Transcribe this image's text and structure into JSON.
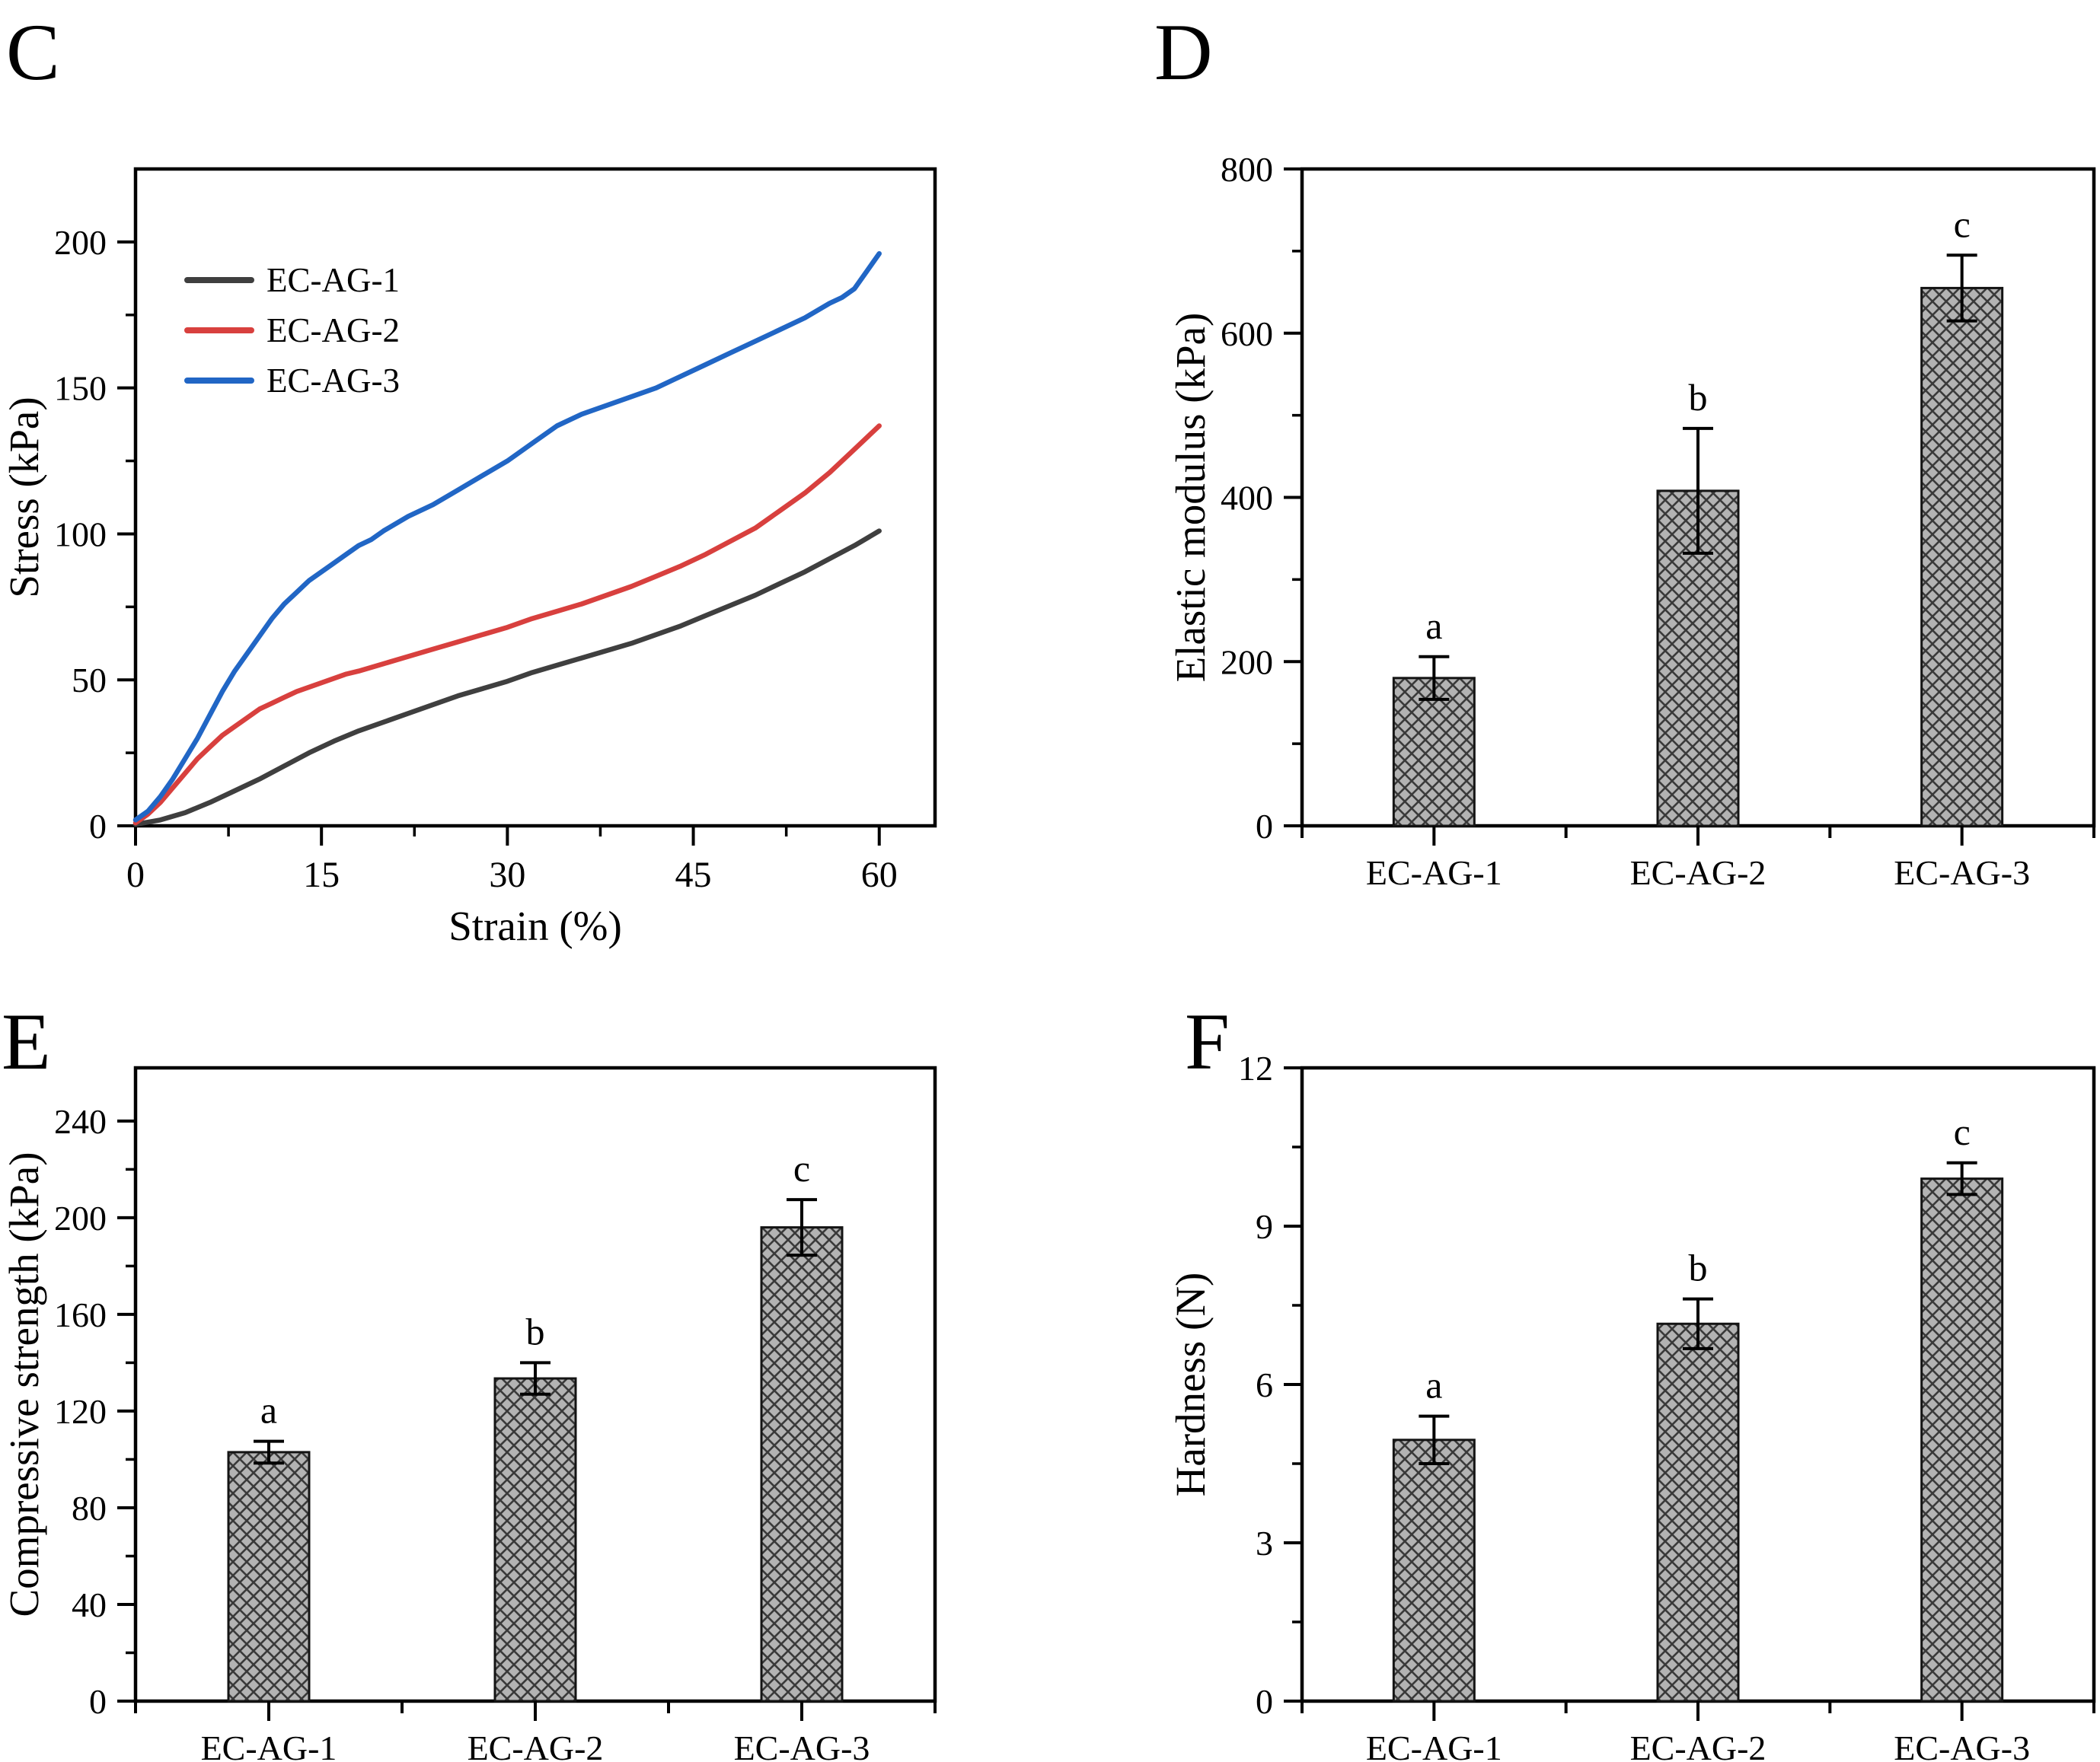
{
  "style": {
    "axis_color": "#000000",
    "text_color": "#000000",
    "bar_fill": "#b3b3b3",
    "bar_hatch": "#3a3a3a",
    "bar_edge": "#141414"
  },
  "chart_data": [
    {
      "type": "line",
      "panel": "C",
      "xlabel": "Strain (%)",
      "ylabel": "Stress (kPa)",
      "xlim": [
        0,
        64.5
      ],
      "ylim": [
        0,
        225
      ],
      "xticks": [
        0,
        15,
        30,
        45,
        60
      ],
      "xminor": [
        7.5,
        22.5,
        37.5,
        52.5
      ],
      "yticks": [
        0,
        50,
        100,
        150,
        200
      ],
      "yminor": [
        25,
        75,
        125,
        175
      ],
      "legend_position": "top-left-inside",
      "series": [
        {
          "name": "EC-AG-1",
          "color": "#3f3f3f",
          "points": [
            [
              0,
              0.5
            ],
            [
              2,
              2
            ],
            [
              4,
              4.5
            ],
            [
              6,
              8
            ],
            [
              8,
              12
            ],
            [
              10,
              16
            ],
            [
              12,
              20.5
            ],
            [
              14,
              25
            ],
            [
              16,
              29
            ],
            [
              18,
              32.5
            ],
            [
              20,
              35.5
            ],
            [
              22,
              38.5
            ],
            [
              24,
              41.5
            ],
            [
              26,
              44.5
            ],
            [
              28,
              47
            ],
            [
              30,
              49.5
            ],
            [
              32,
              52.5
            ],
            [
              34,
              55
            ],
            [
              36,
              57.5
            ],
            [
              38,
              60
            ],
            [
              40,
              62.5
            ],
            [
              42,
              65.5
            ],
            [
              44,
              68.5
            ],
            [
              46,
              72
            ],
            [
              48,
              75.5
            ],
            [
              50,
              79
            ],
            [
              52,
              83
            ],
            [
              54,
              87
            ],
            [
              56,
              91.5
            ],
            [
              58,
              96
            ],
            [
              60,
              101
            ]
          ]
        },
        {
          "name": "EC-AG-2",
          "color": "#d8403e",
          "points": [
            [
              0,
              1
            ],
            [
              1,
              4
            ],
            [
              2,
              8
            ],
            [
              3,
              13
            ],
            [
              4,
              18
            ],
            [
              5,
              23
            ],
            [
              6,
              27
            ],
            [
              7,
              31
            ],
            [
              8,
              34
            ],
            [
              9,
              37
            ],
            [
              10,
              40
            ],
            [
              11,
              42
            ],
            [
              12,
              44
            ],
            [
              13,
              46
            ],
            [
              14,
              47.5
            ],
            [
              15,
              49
            ],
            [
              16,
              50.5
            ],
            [
              17,
              52
            ],
            [
              18,
              53
            ],
            [
              20,
              55.5
            ],
            [
              22,
              58
            ],
            [
              24,
              60.5
            ],
            [
              26,
              63
            ],
            [
              28,
              65.5
            ],
            [
              30,
              68
            ],
            [
              32,
              71
            ],
            [
              34,
              73.5
            ],
            [
              36,
              76
            ],
            [
              38,
              79
            ],
            [
              40,
              82
            ],
            [
              42,
              85.5
            ],
            [
              44,
              89
            ],
            [
              46,
              93
            ],
            [
              48,
              97.5
            ],
            [
              50,
              102
            ],
            [
              52,
              108
            ],
            [
              54,
              114
            ],
            [
              56,
              121
            ],
            [
              58,
              129
            ],
            [
              60,
              137
            ]
          ]
        },
        {
          "name": "EC-AG-3",
          "color": "#2166c5",
          "points": [
            [
              0,
              2
            ],
            [
              1,
              5
            ],
            [
              2,
              10
            ],
            [
              3,
              16
            ],
            [
              4,
              23
            ],
            [
              5,
              30
            ],
            [
              6,
              38
            ],
            [
              7,
              46
            ],
            [
              8,
              53
            ],
            [
              9,
              59
            ],
            [
              10,
              65
            ],
            [
              11,
              71
            ],
            [
              12,
              76
            ],
            [
              13,
              80
            ],
            [
              14,
              84
            ],
            [
              15,
              87
            ],
            [
              16,
              90
            ],
            [
              17,
              93
            ],
            [
              18,
              96
            ],
            [
              19,
              98
            ],
            [
              20,
              101
            ],
            [
              22,
              106
            ],
            [
              24,
              110
            ],
            [
              26,
              115
            ],
            [
              28,
              120
            ],
            [
              30,
              125
            ],
            [
              32,
              131
            ],
            [
              34,
              137
            ],
            [
              36,
              141
            ],
            [
              37,
              142.5
            ],
            [
              38,
              144
            ],
            [
              40,
              147
            ],
            [
              42,
              150
            ],
            [
              44,
              154
            ],
            [
              46,
              158
            ],
            [
              48,
              162
            ],
            [
              50,
              166
            ],
            [
              52,
              170
            ],
            [
              54,
              174
            ],
            [
              56,
              179
            ],
            [
              57,
              181
            ],
            [
              58,
              184
            ],
            [
              59,
              190
            ],
            [
              60,
              196
            ]
          ]
        }
      ]
    },
    {
      "type": "bar",
      "panel": "D",
      "ylabel": "Elastic modulus (kPa)",
      "categories": [
        "EC-AG-1",
        "EC-AG-2",
        "EC-AG-3"
      ],
      "values": [
        180,
        408,
        655
      ],
      "errors": [
        26,
        76,
        40
      ],
      "sig_labels": [
        "a",
        "b",
        "c"
      ],
      "ylim": [
        0,
        800
      ],
      "yticks": [
        0,
        200,
        400,
        600,
        800
      ],
      "yminor": [
        100,
        300,
        500,
        700
      ]
    },
    {
      "type": "bar",
      "panel": "E",
      "ylabel": "Compressive strength (kPa)",
      "categories": [
        "EC-AG-1",
        "EC-AG-2",
        "EC-AG-3"
      ],
      "values": [
        103,
        133.5,
        196
      ],
      "errors": [
        4.5,
        6.5,
        11.5
      ],
      "sig_labels": [
        "a",
        "b",
        "c"
      ],
      "ylim": [
        0,
        262
      ],
      "yticks": [
        0,
        40,
        80,
        120,
        160,
        200,
        240
      ],
      "yminor": [
        20,
        60,
        100,
        140,
        180,
        220
      ]
    },
    {
      "type": "bar",
      "panel": "F",
      "ylabel": "Hardness (N)",
      "categories": [
        "EC-AG-1",
        "EC-AG-2",
        "EC-AG-3"
      ],
      "values": [
        4.95,
        7.15,
        9.9
      ],
      "errors": [
        0.45,
        0.47,
        0.3
      ],
      "sig_labels": [
        "a",
        "b",
        "c"
      ],
      "ylim": [
        0,
        12
      ],
      "yticks": [
        0,
        3,
        6,
        9,
        12
      ],
      "yminor": [
        1.5,
        4.5,
        7.5,
        10.5
      ]
    }
  ]
}
